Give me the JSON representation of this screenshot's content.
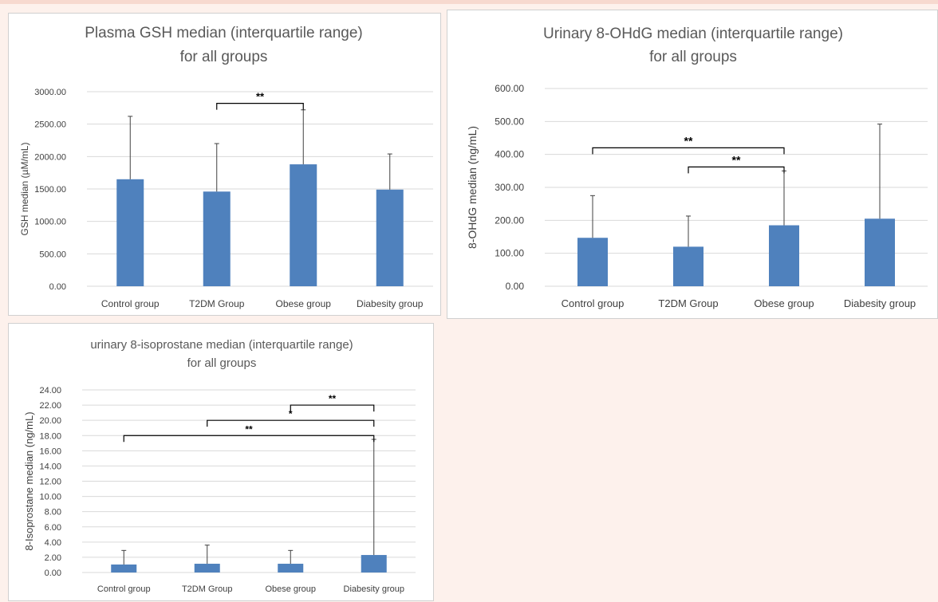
{
  "chart_data": [
    {
      "type": "bar",
      "title": [
        "Plasma GSH median (interquartile range)",
        "for all groups"
      ],
      "xlabel": "",
      "ylabel": "GSH median (µM/mL)",
      "categories": [
        "Control group",
        "T2DM Group",
        "Obese group",
        "Diabesity group"
      ],
      "values": [
        1650,
        1460,
        1880,
        1490
      ],
      "error_upper": [
        2620,
        2200,
        2720,
        2040
      ],
      "ylim": [
        0,
        3000
      ],
      "yticks": [
        0,
        500,
        1000,
        1500,
        2000,
        2500,
        3000
      ],
      "grid": true,
      "bar_color": "#4f81bd",
      "significance": [
        {
          "from": 1,
          "to": 2,
          "label": "**",
          "y": 2820
        }
      ]
    },
    {
      "type": "bar",
      "title": [
        "Urinary 8-OHdG median (interquartile range)",
        "for all groups"
      ],
      "xlabel": "",
      "ylabel": "8-OHdG median (ng/mL)",
      "categories": [
        "Control group",
        "T2DM Group",
        "Obese group",
        "Diabesity group"
      ],
      "values": [
        147,
        120,
        185,
        205
      ],
      "error_upper": [
        275,
        213,
        350,
        492
      ],
      "ylim": [
        0,
        600
      ],
      "yticks": [
        0,
        100,
        200,
        300,
        400,
        500,
        600
      ],
      "grid": true,
      "bar_color": "#4f81bd",
      "significance": [
        {
          "from": 0,
          "to": 2,
          "label": "**",
          "y": 420
        },
        {
          "from": 1,
          "to": 2,
          "label": "**",
          "y": 362
        }
      ]
    },
    {
      "type": "bar",
      "title": [
        "urinary 8-isoprostane median (interquartile range)",
        "for all groups"
      ],
      "xlabel": "",
      "ylabel": "8-Isoprostane median (ng/mL)",
      "categories": [
        "Control group",
        "T2DM Group",
        "Obese group",
        "Diabesity group"
      ],
      "values": [
        1.05,
        1.15,
        1.15,
        2.3
      ],
      "error_upper": [
        2.9,
        3.6,
        2.9,
        17.5
      ],
      "ylim": [
        0,
        24
      ],
      "yticks": [
        0,
        2,
        4,
        6,
        8,
        10,
        12,
        14,
        16,
        18,
        20,
        22,
        24
      ],
      "grid": true,
      "bar_color": "#4f81bd",
      "significance": [
        {
          "from": 2,
          "to": 3,
          "label": "**",
          "y": 22.0
        },
        {
          "from": 1,
          "to": 3,
          "label": "*",
          "y": 20.0
        },
        {
          "from": 0,
          "to": 3,
          "label": "**",
          "y": 18.0
        }
      ]
    }
  ]
}
